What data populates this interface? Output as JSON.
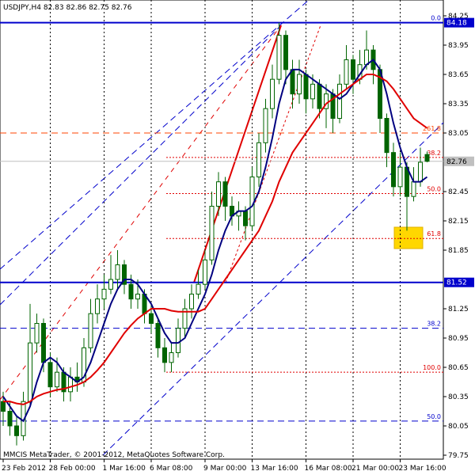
{
  "chart_data": {
    "type": "candlestick",
    "title": "USDJPY,H4  82.83 82.86 82.75 82.76",
    "footer": "MMCIS MetaTrader, © 2001-2012, MetaQuotes Software Corp.",
    "categories": [
      "23 Feb 2012",
      null,
      null,
      null,
      null,
      null,
      null,
      "28 Feb 00:00",
      null,
      null,
      null,
      null,
      null,
      null,
      null,
      "1 Mar 16:00",
      null,
      null,
      null,
      null,
      null,
      null,
      "6 Mar 08:00",
      null,
      null,
      null,
      null,
      null,
      null,
      null,
      "9 Mar 00:00",
      null,
      null,
      null,
      null,
      null,
      null,
      "13 Mar 16:00",
      null,
      null,
      null,
      null,
      null,
      null,
      null,
      "16 Mar 08:00",
      null,
      null,
      null,
      null,
      null,
      null,
      "21 Mar 00:00",
      null,
      null,
      null,
      null,
      null,
      null,
      "23 Mar 16:00",
      null,
      null,
      null,
      null
    ],
    "open": [
      80.3,
      80.2,
      80.05,
      79.95,
      80.3,
      80.9,
      81.1,
      80.7,
      80.45,
      80.6,
      80.4,
      80.55,
      80.5,
      80.85,
      81.2,
      81.35,
      81.45,
      81.55,
      81.7,
      81.5,
      81.35,
      81.4,
      81.2,
      81.1,
      80.85,
      80.7,
      80.8,
      81.05,
      81.25,
      81.4,
      81.5,
      81.75,
      82.3,
      82.55,
      82.3,
      82.2,
      82.25,
      82.1,
      82.6,
      82.95,
      83.3,
      83.6,
      84.05,
      83.7,
      83.45,
      83.65,
      83.4,
      83.55,
      83.3,
      83.45,
      83.2,
      83.55,
      83.8,
      83.6,
      83.75,
      83.9,
      83.7,
      83.2,
      82.85,
      82.5,
      82.7,
      82.4,
      82.55,
      82.83
    ],
    "high": [
      80.4,
      80.3,
      80.15,
      80.4,
      81.3,
      81.2,
      81.15,
      80.8,
      80.75,
      80.65,
      80.65,
      80.7,
      80.95,
      81.35,
      81.5,
      81.6,
      81.8,
      81.85,
      81.75,
      81.6,
      81.55,
      81.45,
      81.3,
      81.15,
      80.95,
      80.9,
      81.15,
      81.35,
      81.5,
      81.65,
      81.85,
      82.45,
      82.65,
      82.6,
      82.4,
      82.35,
      82.3,
      82.7,
      83.05,
      83.4,
      83.75,
      84.18,
      84.1,
      83.8,
      83.8,
      83.7,
      83.65,
      83.6,
      83.55,
      83.5,
      83.65,
      83.95,
      83.85,
      83.9,
      84.1,
      83.95,
      83.75,
      83.25,
      82.95,
      82.85,
      82.75,
      82.7,
      82.9,
      82.86
    ],
    "low": [
      80.05,
      79.95,
      79.85,
      79.9,
      80.25,
      80.8,
      80.6,
      80.35,
      80.4,
      80.3,
      80.3,
      80.4,
      80.45,
      80.8,
      81.1,
      81.25,
      81.4,
      81.45,
      81.4,
      81.25,
      81.25,
      81.1,
      81.0,
      80.75,
      80.6,
      80.6,
      80.75,
      80.95,
      81.15,
      81.35,
      81.45,
      81.7,
      82.2,
      82.15,
      82.1,
      82.05,
      81.95,
      82.05,
      82.5,
      82.85,
      83.2,
      83.55,
      83.55,
      83.3,
      83.35,
      83.25,
      83.3,
      83.2,
      83.1,
      83.05,
      83.15,
      83.5,
      83.45,
      83.55,
      83.7,
      83.55,
      83.05,
      82.7,
      82.4,
      82.4,
      82.05,
      82.35,
      82.5,
      82.75
    ],
    "close": [
      80.2,
      80.05,
      79.95,
      80.3,
      80.9,
      81.1,
      80.7,
      80.45,
      80.6,
      80.4,
      80.55,
      80.5,
      80.85,
      81.2,
      81.35,
      81.45,
      81.55,
      81.7,
      81.5,
      81.35,
      81.4,
      81.2,
      81.1,
      80.85,
      80.7,
      80.8,
      81.05,
      81.25,
      81.4,
      81.5,
      81.75,
      82.3,
      82.55,
      82.3,
      82.2,
      82.25,
      82.1,
      82.6,
      82.95,
      83.3,
      83.6,
      84.05,
      83.7,
      83.45,
      83.65,
      83.4,
      83.55,
      83.3,
      83.45,
      83.2,
      83.55,
      83.8,
      83.6,
      83.75,
      83.9,
      83.7,
      83.2,
      82.85,
      82.5,
      82.7,
      82.4,
      82.55,
      82.75,
      82.76
    ],
    "candle_color": "#006400",
    "lines": [
      {
        "color": "#000080",
        "values": [
          80.35,
          80.25,
          80.15,
          80.1,
          80.25,
          80.5,
          80.7,
          80.75,
          80.7,
          80.6,
          80.55,
          80.5,
          80.55,
          80.7,
          80.9,
          81.1,
          81.3,
          81.45,
          81.55,
          81.55,
          81.5,
          81.4,
          81.3,
          81.15,
          81.0,
          80.9,
          80.9,
          80.95,
          81.1,
          81.25,
          81.4,
          81.6,
          81.85,
          82.05,
          82.2,
          82.25,
          82.25,
          82.3,
          82.45,
          82.7,
          83.0,
          83.35,
          83.6,
          83.7,
          83.7,
          83.65,
          83.6,
          83.55,
          83.5,
          83.45,
          83.4,
          83.45,
          83.55,
          83.65,
          83.75,
          83.8,
          83.7,
          83.45,
          83.15,
          82.9,
          82.7,
          82.55,
          82.55,
          82.6
        ]
      },
      {
        "color": "#e00000",
        "values": [
          80.3,
          80.3,
          80.28,
          80.27,
          80.3,
          80.35,
          80.38,
          80.4,
          80.42,
          80.43,
          80.45,
          80.47,
          80.5,
          80.55,
          80.62,
          80.7,
          80.8,
          80.9,
          81.0,
          81.08,
          81.15,
          81.2,
          81.25,
          81.25,
          81.25,
          81.23,
          81.22,
          81.22,
          81.22,
          81.22,
          81.25,
          81.35,
          81.45,
          81.55,
          81.65,
          81.75,
          81.85,
          81.95,
          82.05,
          82.2,
          82.35,
          82.55,
          82.7,
          82.85,
          82.95,
          83.05,
          83.15,
          83.25,
          83.35,
          83.4,
          83.45,
          83.5,
          83.55,
          83.6,
          83.65,
          83.65,
          83.62,
          83.58,
          83.5,
          83.4,
          83.3,
          83.2,
          83.15,
          83.1
        ]
      }
    ],
    "hlines": [
      {
        "value": 84.18,
        "color": "#0000cc"
      },
      {
        "value": 81.52,
        "color": "#0000cc"
      },
      {
        "value": 82.76,
        "color": "#c0c0c0"
      }
    ],
    "levels": [
      {
        "value": 84.18,
        "label": "0.0",
        "color": "#0000cc",
        "style": "dashed"
      },
      {
        "value": 83.05,
        "label": "261.8",
        "color": "#ff4500",
        "style": "dashed"
      },
      {
        "value": 82.8,
        "label": "38.2",
        "color": "#e00000",
        "style": "dotted"
      },
      {
        "value": 82.43,
        "label": "50.0",
        "color": "#e00000",
        "style": "dotted"
      },
      {
        "value": 81.97,
        "label": "61.8",
        "color": "#e00000",
        "style": "dotted"
      },
      {
        "value": 80.6,
        "label": "100.0",
        "color": "#e00000",
        "style": "dotted"
      },
      {
        "value": 81.05,
        "label": "38.2",
        "color": "#0000cc",
        "style": "dashed"
      },
      {
        "value": 80.1,
        "label": "50.0",
        "color": "#0000cc",
        "style": "dashed"
      }
    ],
    "ylim": [
      79.75,
      84.25
    ],
    "yticks": [
      84.25,
      83.95,
      83.65,
      83.35,
      83.05,
      82.45,
      82.15,
      81.85,
      81.25,
      80.95,
      80.65,
      80.35,
      80.05,
      79.75
    ],
    "grid": true
  }
}
